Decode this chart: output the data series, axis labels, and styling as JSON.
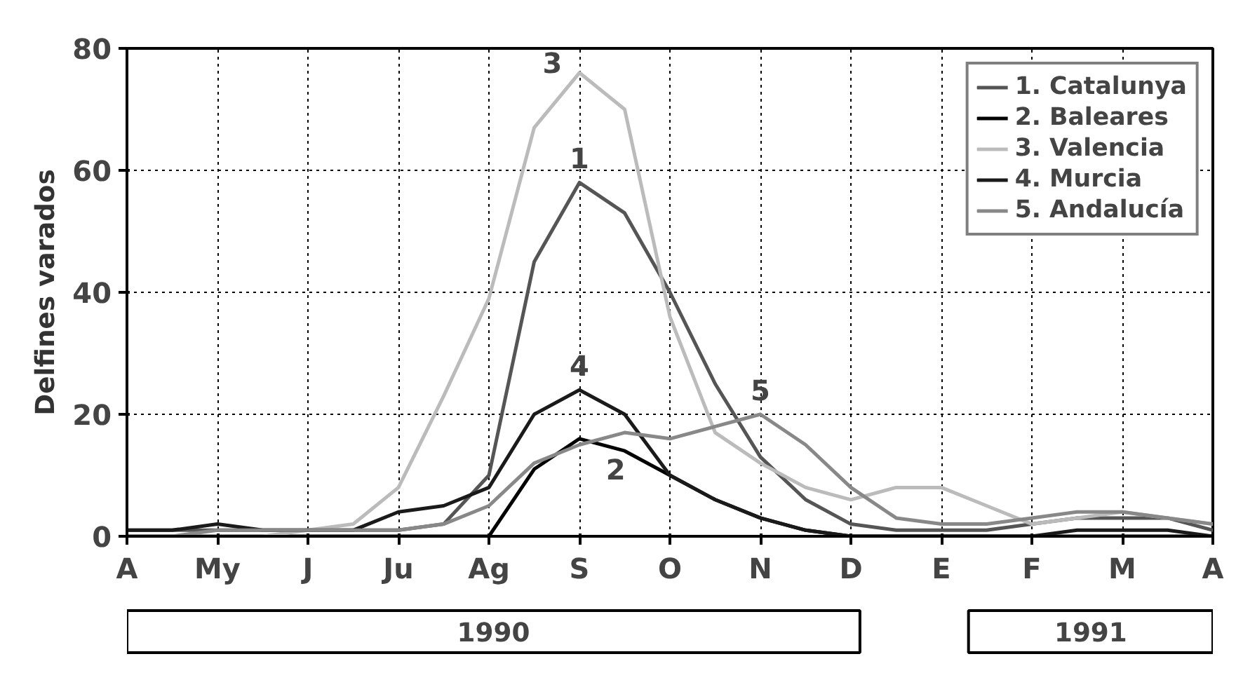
{
  "chart_data": {
    "type": "line",
    "ylabel": "Delfines varados",
    "categories": [
      "A",
      null,
      "My",
      null,
      "J",
      null,
      "Ju",
      null,
      "Ag",
      null,
      "S",
      null,
      "O",
      null,
      "N",
      null,
      "D",
      null,
      "E",
      null,
      "F",
      null,
      "M",
      null,
      "A"
    ],
    "ylim": [
      0,
      80
    ],
    "yticks": [
      0,
      20,
      40,
      60,
      80
    ],
    "series": [
      {
        "name": "1. Catalunya",
        "color": "#555555",
        "values": [
          1,
          1,
          1,
          1,
          1,
          1,
          1,
          2,
          10,
          45,
          58,
          53,
          40,
          25,
          13,
          6,
          2,
          1,
          1,
          1,
          2,
          3,
          3,
          3,
          1
        ]
      },
      {
        "name": "2. Baleares",
        "color": "#000000",
        "values": [
          0,
          0,
          0,
          0,
          0,
          0,
          0,
          0,
          0,
          11,
          16,
          14,
          10,
          6,
          3,
          1,
          0,
          0,
          0,
          0,
          0,
          0,
          0,
          0,
          0
        ]
      },
      {
        "name": "3. Valencia",
        "color": "#bbbbbb",
        "values": [
          0,
          0,
          0,
          0,
          1,
          2,
          8,
          23,
          39,
          67,
          76,
          70,
          36,
          17,
          12,
          8,
          6,
          8,
          8,
          5,
          2,
          3,
          4,
          3,
          2
        ]
      },
      {
        "name": "4. Murcia",
        "color": "#1a1a1a",
        "values": [
          1,
          1,
          2,
          1,
          1,
          1,
          4,
          5,
          8,
          20,
          24,
          20,
          10,
          6,
          3,
          1,
          0,
          0,
          0,
          0,
          0,
          1,
          1,
          1,
          0
        ]
      },
      {
        "name": "5. Andalucía",
        "color": "#888888",
        "values": [
          0,
          0,
          1,
          1,
          1,
          1,
          1,
          2,
          5,
          12,
          15,
          17,
          16,
          18,
          20,
          15,
          8,
          3,
          2,
          2,
          3,
          4,
          4,
          3,
          2
        ]
      }
    ],
    "annotations": [
      "1",
      "2",
      "3",
      "4",
      "5",
      "1990",
      "1991"
    ],
    "grid": true,
    "legend": "top right",
    "marker": "none",
    "line_style": "solid"
  }
}
